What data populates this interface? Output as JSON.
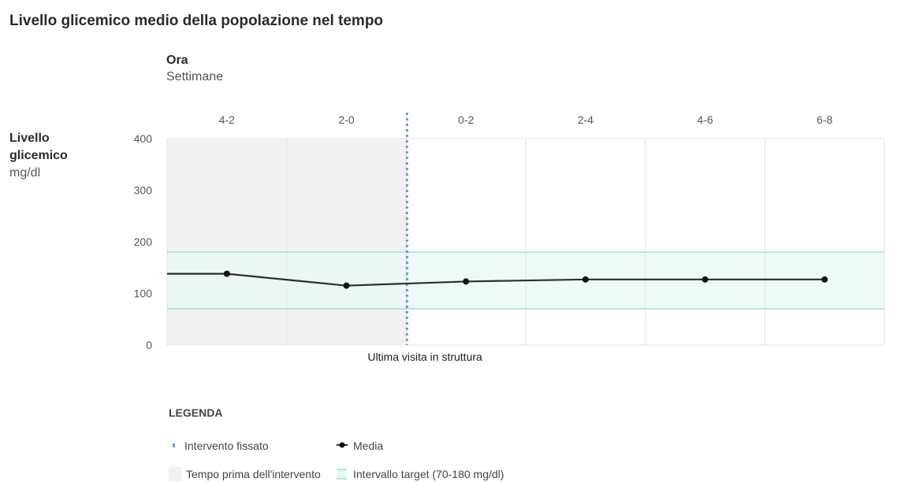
{
  "chart_data": {
    "type": "line",
    "title": "Livello glicemico medio della popolazione nel tempo",
    "x_title": "Ora",
    "x_subtitle": "Settimane",
    "y_title": "Livello glicemico",
    "y_unit": "mg/dl",
    "categories": [
      "4-2",
      "2-0",
      "0-2",
      "2-4",
      "4-6",
      "6-8"
    ],
    "series": [
      {
        "name": "Media",
        "values": [
          138,
          115,
          123,
          127,
          127,
          127
        ]
      }
    ],
    "series_start_value": 138,
    "ylim": [
      0,
      400
    ],
    "yticks": [
      0,
      100,
      200,
      300,
      400
    ],
    "target_range": [
      70,
      180
    ],
    "pre_intervention_categories": [
      "4-2",
      "2-0"
    ],
    "intervention_label": "Ultima visita in struttura",
    "grid": true,
    "legend_position": "bottom-left",
    "colors": {
      "line": "#2d2d2d",
      "intervention": "#5b9be6",
      "target": "#a3e0cc",
      "target_fill": "#e9f7f1",
      "pre_intervention_fill": "#f1f1f1"
    }
  },
  "legend": {
    "title": "LEGENDA",
    "items": {
      "intervention": "Intervento fissato",
      "mean": "Media",
      "pre": "Tempo prima dell'intervento",
      "target": "Intervallo target (70-180 mg/dl)"
    }
  }
}
